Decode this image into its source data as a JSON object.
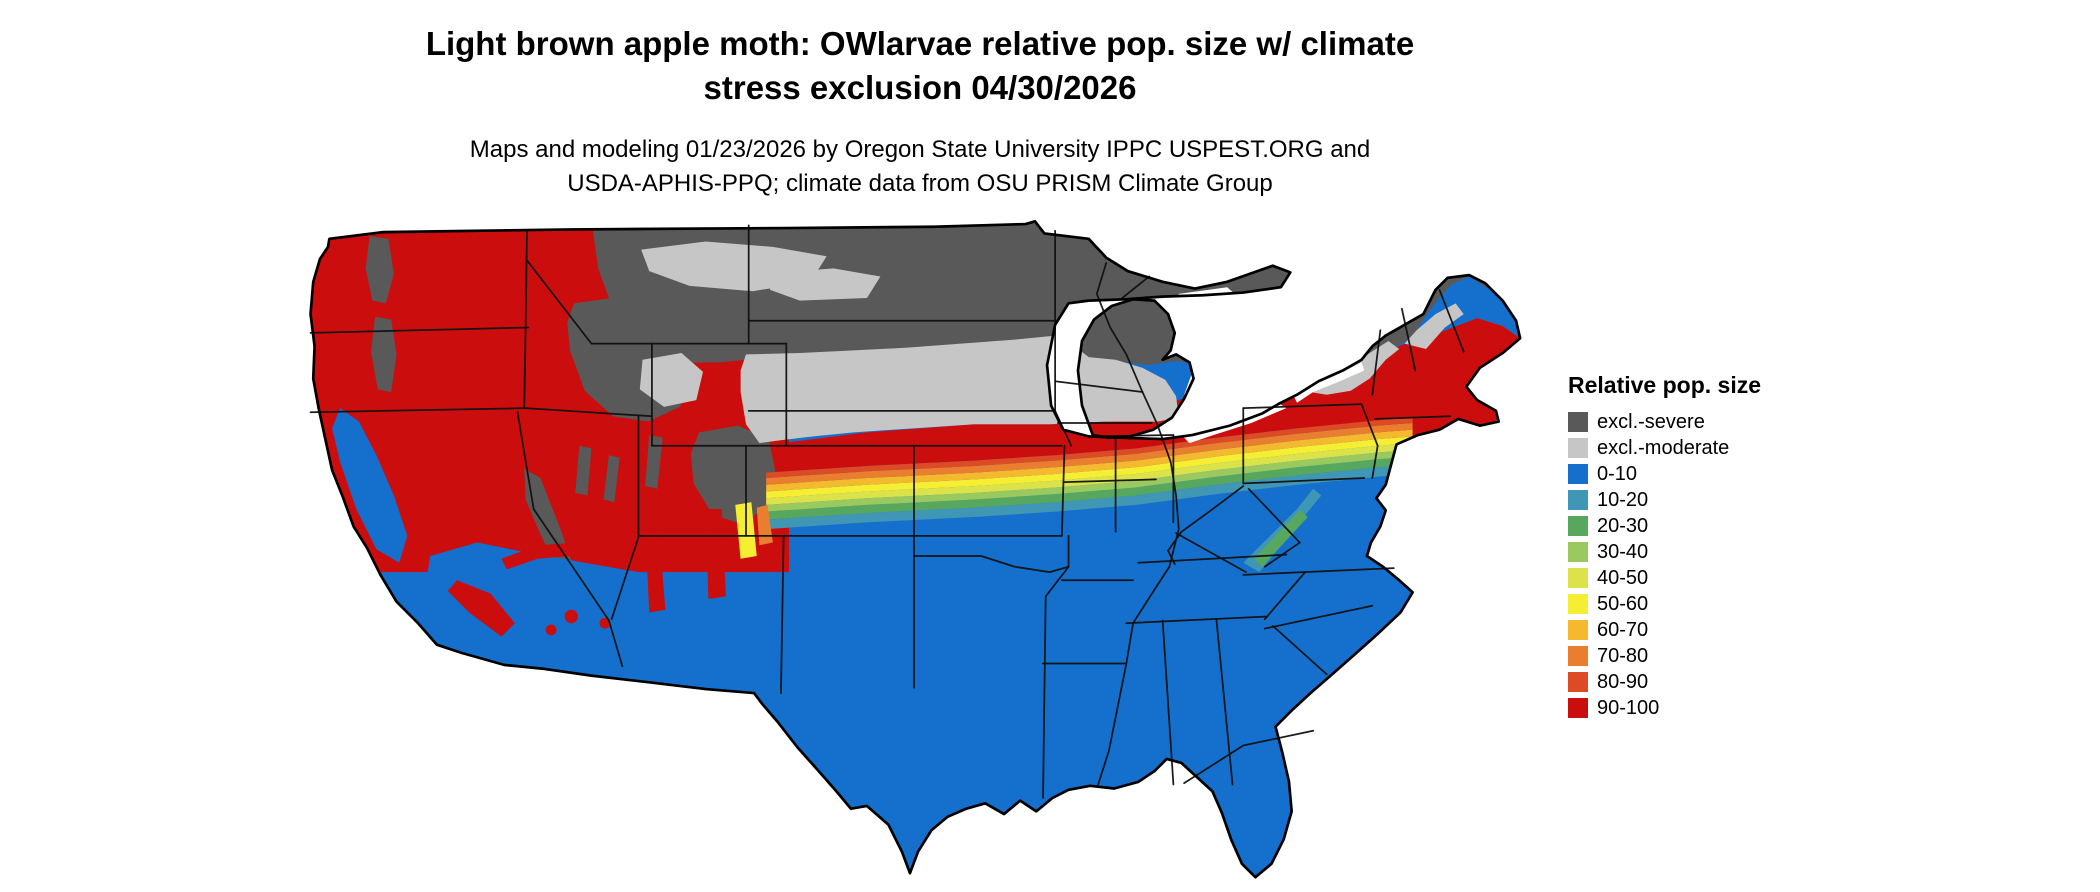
{
  "header": {
    "title_line1": "Light brown apple moth: OWlarvae relative pop. size w/ climate",
    "title_line2": "stress exclusion 04/30/2026",
    "subtitle_line1": "Maps and modeling 01/23/2026 by Oregon State University IPPC USPEST.ORG and",
    "subtitle_line2": "USDA-APHIS-PPQ; climate data from OSU PRISM Climate Group"
  },
  "legend": {
    "title": "Relative pop. size",
    "items": [
      {
        "label": "excl.-severe",
        "color": "#595959"
      },
      {
        "label": "excl.-moderate",
        "color": "#c6c6c6"
      },
      {
        "label": "0-10",
        "color": "#1470cc"
      },
      {
        "label": "10-20",
        "color": "#3f97b5"
      },
      {
        "label": "20-30",
        "color": "#57a85e"
      },
      {
        "label": "30-40",
        "color": "#9ac95f"
      },
      {
        "label": "40-50",
        "color": "#dce24a"
      },
      {
        "label": "50-60",
        "color": "#f6ee33"
      },
      {
        "label": "60-70",
        "color": "#f5b92e"
      },
      {
        "label": "70-80",
        "color": "#ea7e2f"
      },
      {
        "label": "80-90",
        "color": "#dd4a26"
      },
      {
        "label": "90-100",
        "color": "#cc0d0d"
      }
    ]
  },
  "map": {
    "region": "Continental United States",
    "water_color": "#ffffff",
    "border_color": "#000000",
    "depicted_pattern": [
      "Northern tier (northern plains, Great Lakes north, interior New England) excluded - severe (dark gray)",
      "Band of excluded - moderate (light gray) across the central-northern plains and upper Midwest",
      "High relative population (90-100, red) across the mid-latitudes, West Coast, mountain West and Northeast coast",
      "Thin graded band (80-90 down to 10-20) along the southern edge of the red zone",
      "Low relative population (0-10, blue) across the entire South, Southwest lowlands and California valleys"
    ]
  }
}
